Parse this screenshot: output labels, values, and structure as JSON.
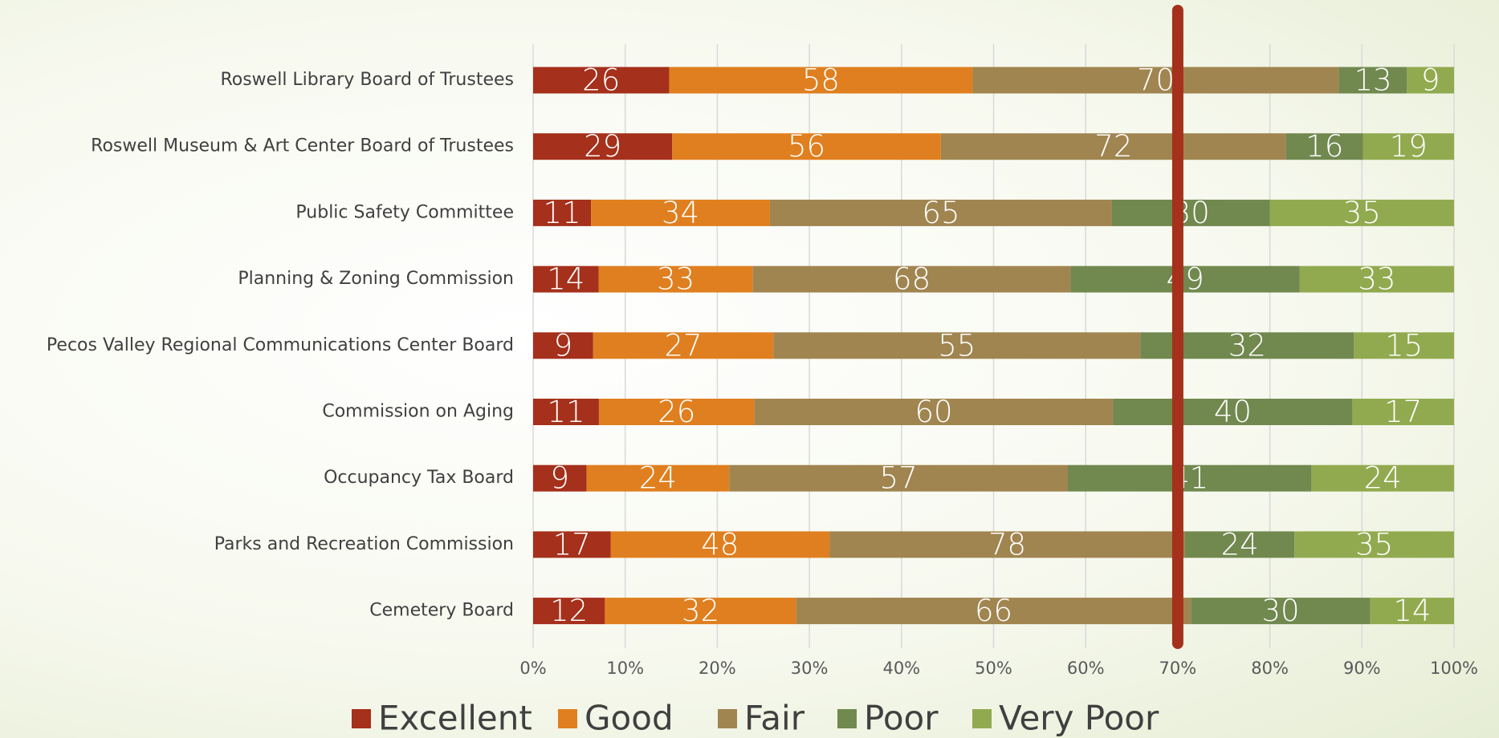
{
  "chart_data": {
    "type": "bar",
    "orientation": "horizontal",
    "stacking": "percent",
    "categories": [
      "Roswell Library Board of Trustees",
      "Roswell Museum & Art Center Board of Trustees",
      "Public Safety Committee",
      "Planning & Zoning Commission",
      "Pecos Valley Regional Communications Center Board",
      "Commission on Aging",
      "Occupancy Tax Board",
      "Parks and Recreation Commission",
      "Cemetery Board"
    ],
    "series": [
      {
        "name": "Excellent",
        "color": "#a5301b",
        "values": [
          26,
          29,
          11,
          14,
          9,
          11,
          9,
          17,
          12
        ]
      },
      {
        "name": "Good",
        "color": "#e07f1f",
        "values": [
          58,
          56,
          34,
          33,
          27,
          26,
          24,
          48,
          32
        ]
      },
      {
        "name": "Fair",
        "color": "#a08550",
        "values": [
          70,
          72,
          65,
          68,
          55,
          60,
          57,
          78,
          66
        ]
      },
      {
        "name": "Poor",
        "color": "#71884f",
        "values": [
          13,
          16,
          30,
          49,
          32,
          40,
          41,
          24,
          30
        ]
      },
      {
        "name": "Very Poor",
        "color": "#92aa4f",
        "values": [
          9,
          19,
          35,
          33,
          15,
          17,
          24,
          35,
          14
        ]
      }
    ],
    "xlim": [
      0,
      100
    ],
    "xticks": [
      {
        "value": 0,
        "label": "0%"
      },
      {
        "value": 10,
        "label": "10%"
      },
      {
        "value": 20,
        "label": "20%"
      },
      {
        "value": 30,
        "label": "30%"
      },
      {
        "value": 40,
        "label": "40%"
      },
      {
        "value": 50,
        "label": "50%"
      },
      {
        "value": 60,
        "label": "60%"
      },
      {
        "value": 70,
        "label": "70%"
      },
      {
        "value": 80,
        "label": "80%"
      },
      {
        "value": 90,
        "label": "90%"
      },
      {
        "value": 100,
        "label": "100%"
      }
    ],
    "grid": true,
    "legend": "bottom",
    "reference_line": {
      "value": 70,
      "color": "#a5301b"
    }
  }
}
